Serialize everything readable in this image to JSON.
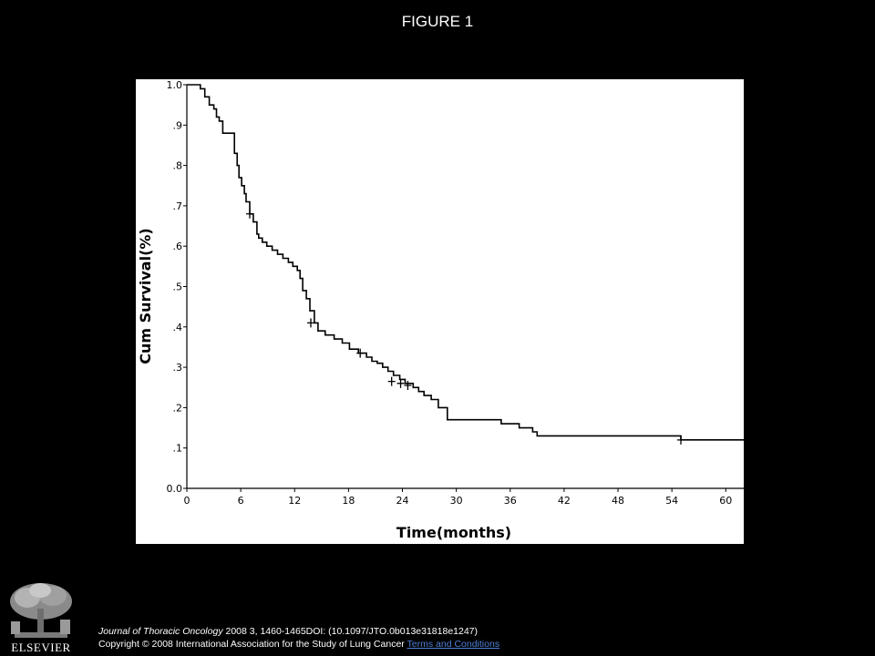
{
  "header": {
    "figure_title": "FIGURE 1"
  },
  "footer": {
    "journal": "Journal of Thoracic Oncology",
    "citation": " 2008 3, 1460-1465DOI: (10.1097/JTO.0b013e31818e1247)",
    "copyright": "Copyright © 2008 International Association for the Study of Lung Cancer",
    "terms_link": "Terms and Conditions"
  },
  "logo": {
    "icon": "elsevier-tree-icon",
    "wordmark": "ELSEVIER"
  },
  "colors": {
    "background": "#000000",
    "plot_background": "#ffffff",
    "line": "#000000",
    "link": "#4f7fd6"
  },
  "chart_data": {
    "type": "line",
    "title": "",
    "xlabel": "Time(months)",
    "ylabel": "Cum Survival(%)",
    "xlim": [
      0,
      62
    ],
    "ylim": [
      0,
      1.0
    ],
    "x_ticks": [
      0,
      6,
      12,
      18,
      24,
      30,
      36,
      42,
      48,
      54,
      60
    ],
    "x_tick_labels": [
      "0",
      "6",
      "12",
      "18",
      "24",
      "30",
      "36",
      "42",
      "48",
      "54",
      "60"
    ],
    "y_ticks": [
      0,
      0.1,
      0.2,
      0.3,
      0.4,
      0.5,
      0.6,
      0.7,
      0.8,
      0.9,
      1.0
    ],
    "y_tick_labels": [
      "0.0",
      ".1",
      ".2",
      ".3",
      ".4",
      ".5",
      ".6",
      ".7",
      ".8",
      ".9",
      "1.0"
    ],
    "grid": false,
    "legend": "none",
    "series": [
      {
        "step": true,
        "x": [
          0,
          1.5,
          2,
          2.5,
          3,
          3.3,
          3.6,
          4,
          5.3,
          5.6,
          5.8,
          6.1,
          6.4,
          6.6,
          7.0,
          7.4,
          7.8,
          8.0,
          8.4,
          8.9,
          9.5,
          10.1,
          10.7,
          11.3,
          11.8,
          12.3,
          12.6,
          12.9,
          13.3,
          13.7,
          14.2,
          14.6,
          15.4,
          16.4,
          17.3,
          18.1,
          19.1,
          20.0,
          20.6,
          21.2,
          21.8,
          22.4,
          23.0,
          23.7,
          24.3,
          25.2,
          25.8,
          26.4,
          27.2,
          28.0,
          29.0,
          35.0,
          37.0,
          38.5,
          39.0,
          55.0,
          62.0
        ],
        "y": [
          1.0,
          0.99,
          0.97,
          0.95,
          0.94,
          0.92,
          0.91,
          0.88,
          0.83,
          0.8,
          0.77,
          0.75,
          0.73,
          0.71,
          0.68,
          0.66,
          0.63,
          0.62,
          0.61,
          0.6,
          0.59,
          0.58,
          0.57,
          0.56,
          0.55,
          0.54,
          0.52,
          0.49,
          0.47,
          0.44,
          0.41,
          0.39,
          0.38,
          0.37,
          0.36,
          0.345,
          0.335,
          0.325,
          0.315,
          0.31,
          0.3,
          0.29,
          0.28,
          0.27,
          0.26,
          0.25,
          0.24,
          0.23,
          0.22,
          0.2,
          0.17,
          0.16,
          0.15,
          0.14,
          0.13,
          0.12,
          0.12
        ],
        "censored": [
          {
            "x": 7.0,
            "y": 0.68
          },
          {
            "x": 13.8,
            "y": 0.41
          },
          {
            "x": 19.3,
            "y": 0.335
          },
          {
            "x": 22.8,
            "y": 0.265
          },
          {
            "x": 23.8,
            "y": 0.26
          },
          {
            "x": 24.6,
            "y": 0.255
          },
          {
            "x": 55.0,
            "y": 0.12
          }
        ]
      }
    ]
  }
}
